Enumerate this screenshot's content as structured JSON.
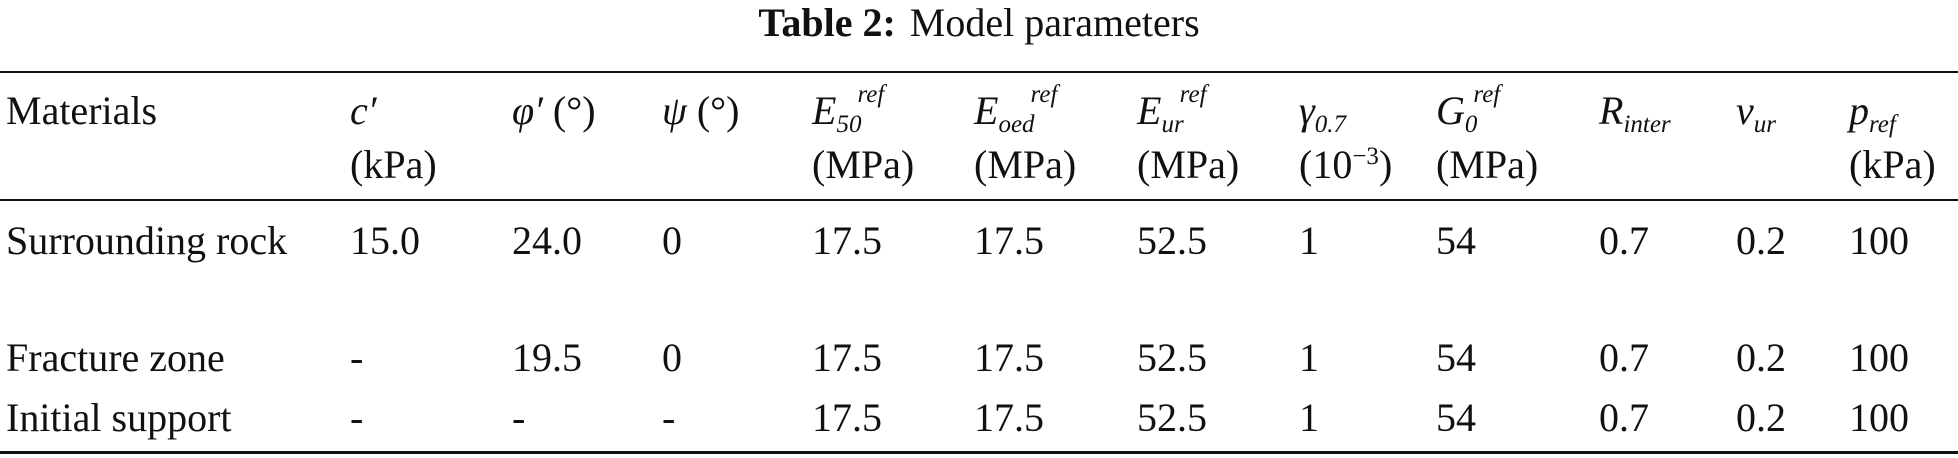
{
  "title": {
    "label": "Table 2:",
    "text": "Model parameters"
  },
  "table": {
    "header": [
      {
        "text": "Materials"
      },
      {
        "symbol": "c′",
        "unit": "(kPa)"
      },
      {
        "symbol": "φ′",
        "suffix": "(°)"
      },
      {
        "symbol": "ψ",
        "suffix": "(°)"
      },
      {
        "symbol": "E",
        "sub": "50",
        "sup": "ref",
        "unit": "(MPa)"
      },
      {
        "symbol": "E",
        "sub": "oed",
        "sup": "ref",
        "unit": "(MPa)"
      },
      {
        "symbol": "E",
        "sub": "ur",
        "sup": "ref",
        "unit": "(MPa)"
      },
      {
        "symbol": "γ",
        "sub": "0.7",
        "unit": "(10",
        "unit_sup": "−3",
        "unit_close": ")"
      },
      {
        "symbol": "G",
        "sub": "0",
        "sup": "ref",
        "unit": "(MPa)"
      },
      {
        "symbol": "R",
        "sub": "inter"
      },
      {
        "symbol": "ν",
        "sub": "ur"
      },
      {
        "symbol": "p",
        "sub": "ref",
        "unit": "(kPa)"
      }
    ],
    "rows": [
      [
        "Surrounding rock",
        "15.0",
        "24.0",
        "0",
        "17.5",
        "17.5",
        "52.5",
        "1",
        "54",
        "0.7",
        "0.2",
        "100"
      ],
      [
        "Fracture zone",
        "-",
        "19.5",
        "0",
        "17.5",
        "17.5",
        "52.5",
        "1",
        "54",
        "0.7",
        "0.2",
        "100"
      ],
      [
        "Initial support",
        "-",
        "-",
        "-",
        "17.5",
        "17.5",
        "52.5",
        "1",
        "54",
        "0.7",
        "0.2",
        "100"
      ]
    ]
  }
}
